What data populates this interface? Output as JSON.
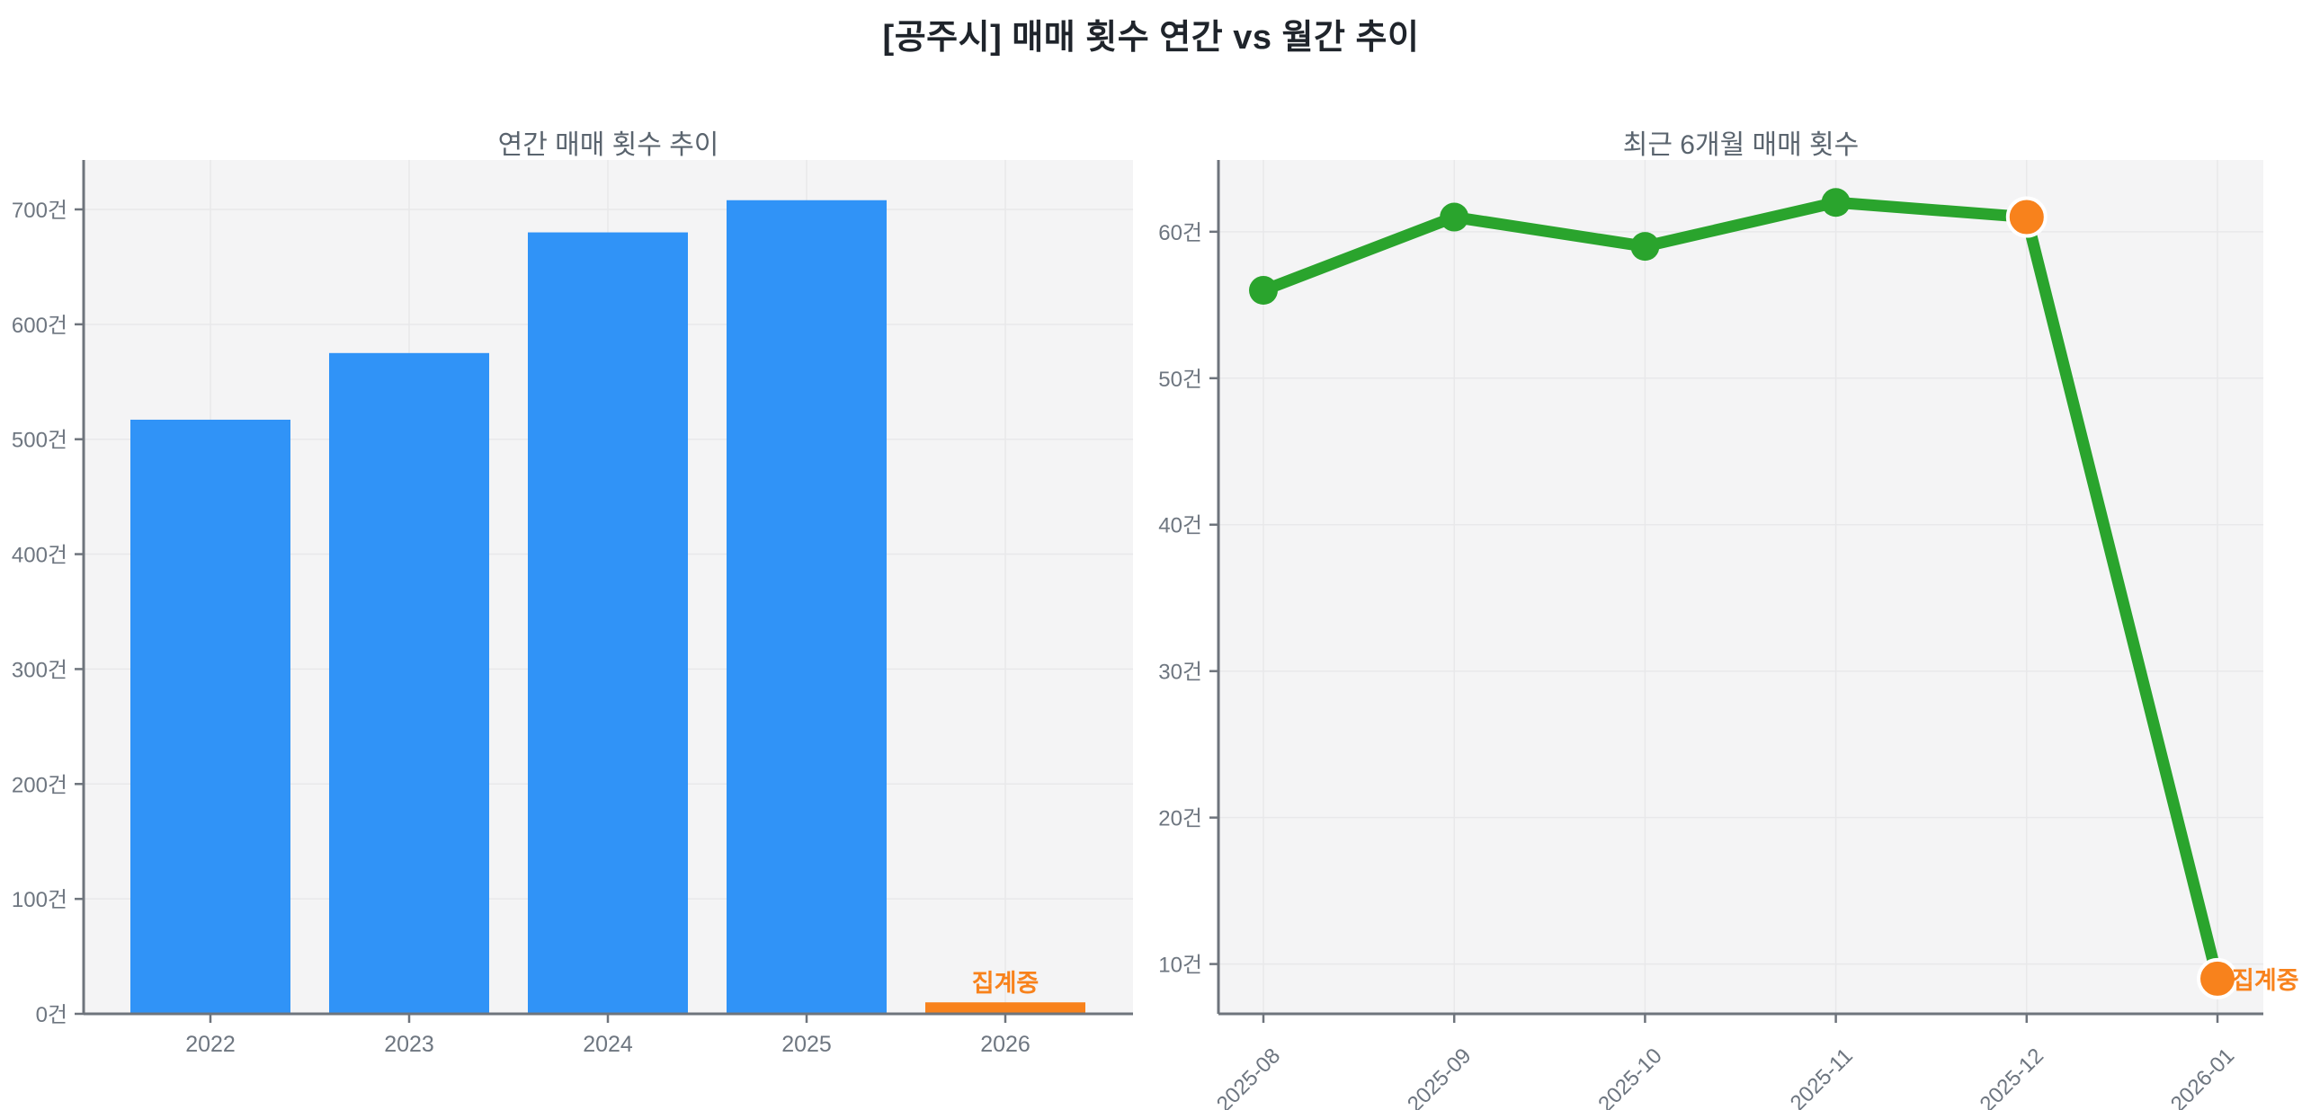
{
  "main_title": "[공주시] 매매 횟수 연간 vs 월간 추이",
  "colors": {
    "bar_blue": "#3093F7",
    "accent_orange": "#F8821C",
    "line_green": "#2AA42D",
    "plot_bg": "#F4F4F5",
    "grid": "#E8E8EA",
    "spine": "#6E747C",
    "tick_label": "#6E7680",
    "subtitle": "#5A646E",
    "title": "#1F242B"
  },
  "chart_data": [
    {
      "type": "bar",
      "title": "연간 매매 횟수 추이",
      "categories": [
        "2022",
        "2023",
        "2024",
        "2025",
        "2026"
      ],
      "values": [
        517,
        575,
        680,
        708,
        10
      ],
      "bar_colors": [
        "#3093F7",
        "#3093F7",
        "#3093F7",
        "#3093F7",
        "#F8821C"
      ],
      "xlabel": "",
      "ylabel": "",
      "ylim": [
        0,
        743
      ],
      "grid": true,
      "legend": false,
      "y_ticks": [
        {
          "value": 0,
          "label": "0건"
        },
        {
          "value": 100,
          "label": "100건"
        },
        {
          "value": 200,
          "label": "200건"
        },
        {
          "value": 300,
          "label": "300건"
        },
        {
          "value": 400,
          "label": "400건"
        },
        {
          "value": 500,
          "label": "500건"
        },
        {
          "value": 600,
          "label": "600건"
        },
        {
          "value": 700,
          "label": "700건"
        }
      ],
      "annotation": {
        "text": "집계중",
        "category": "2026"
      }
    },
    {
      "type": "line",
      "title": "최근 6개월 매매 횟수",
      "x": [
        "2025-08",
        "2025-09",
        "2025-10",
        "2025-11",
        "2025-12",
        "2026-01"
      ],
      "values": [
        56,
        61,
        59,
        62,
        61,
        9
      ],
      "point_colors": [
        "#2AA42D",
        "#2AA42D",
        "#2AA42D",
        "#2AA42D",
        "#F8821C",
        "#F8821C"
      ],
      "line_color": "#2AA42D",
      "xlabel": "",
      "ylabel": "",
      "ylim": [
        6.6,
        64.9
      ],
      "grid": true,
      "legend": false,
      "y_ticks": [
        {
          "value": 10,
          "label": "10건"
        },
        {
          "value": 20,
          "label": "20건"
        },
        {
          "value": 30,
          "label": "30건"
        },
        {
          "value": 40,
          "label": "40건"
        },
        {
          "value": 50,
          "label": "50건"
        },
        {
          "value": 60,
          "label": "60건"
        }
      ],
      "annotation": {
        "text": "집계중",
        "x": "2026-01"
      }
    }
  ]
}
